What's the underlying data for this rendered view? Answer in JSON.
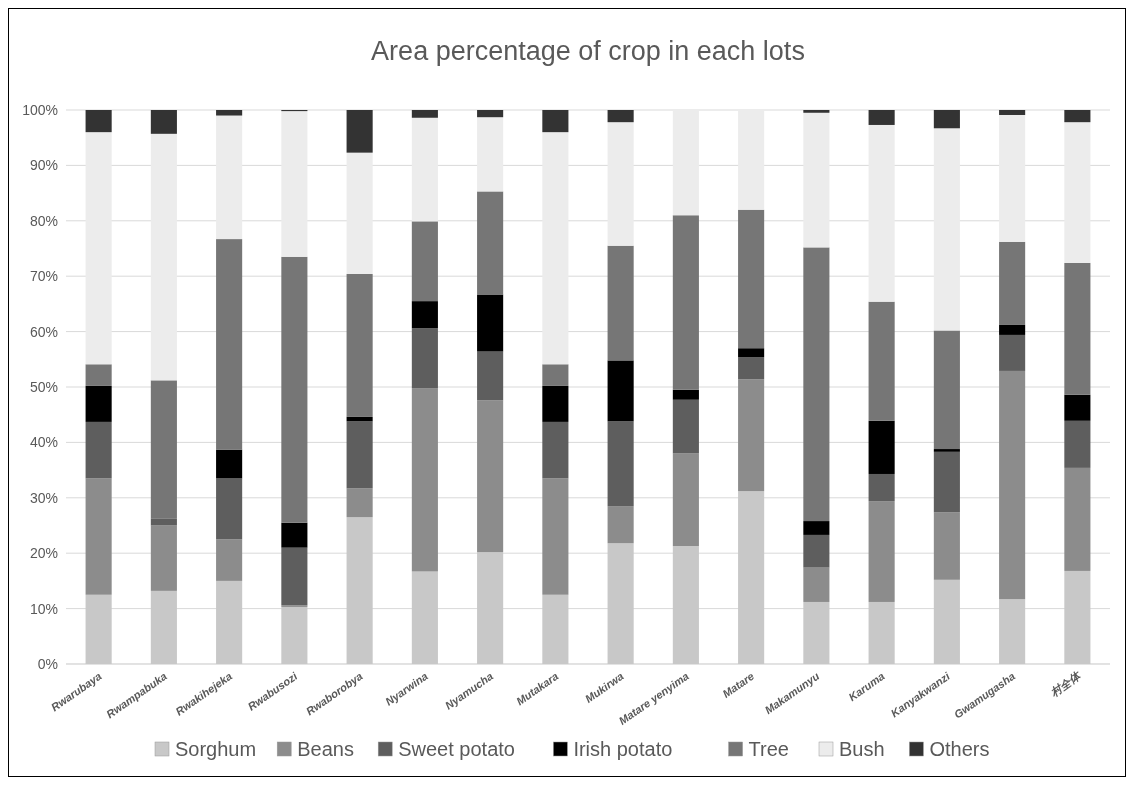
{
  "chart_data": {
    "type": "bar",
    "title": "Area percentage of crop in each lots",
    "stacked": true,
    "categories": [
      "Rwarubaya",
      "Rwampabuka",
      "Rwakihejeka",
      "Rwabusozi",
      "Rwaborobya",
      "Nyarwina",
      "Nyamucha",
      "Mutakara",
      "Mukirwa",
      "Matare yenyima",
      "Matare",
      "Makamunyu",
      "Karuma",
      "Kanyakwanzi",
      "Gwamugasha",
      "村全体"
    ],
    "series": [
      {
        "name": "Sorghum",
        "color": "#c8c8c8",
        "values": [
          12.5,
          13.2,
          15,
          10.3,
          26.5,
          16.7,
          20.2,
          12.5,
          21.8,
          21.3,
          31.2,
          11.2,
          11.2,
          15.2,
          11.7,
          16.8
        ]
      },
      {
        "name": "Beans",
        "color": "#8c8c8c",
        "values": [
          21,
          11.8,
          7.5,
          0.3,
          5.2,
          33.1,
          27.4,
          21,
          6.7,
          16.7,
          20.2,
          6.2,
          18.2,
          12.2,
          41.2,
          18.6
        ]
      },
      {
        "name": "Sweet potato",
        "color": "#5e5e5e",
        "values": [
          10.2,
          1.2,
          11,
          10.4,
          12.1,
          10.8,
          8.8,
          10.2,
          15.3,
          9.7,
          4.0,
          5.9,
          4.9,
          10.9,
          6.5,
          8.5
        ]
      },
      {
        "name": "Irish potato",
        "color": "#000000",
        "values": [
          6.5,
          0,
          5.2,
          4.5,
          0.8,
          4.9,
          10.3,
          6.5,
          11,
          1.8,
          1.6,
          2.5,
          9.6,
          0.5,
          1.8,
          4.7
        ]
      },
      {
        "name": "Tree",
        "color": "#767676",
        "values": [
          3.9,
          25,
          38,
          48,
          25.8,
          14.4,
          18.6,
          3.9,
          20.7,
          31.5,
          25,
          49.4,
          21.5,
          21.4,
          15,
          23.8
        ]
      },
      {
        "name": "Bush",
        "color": "#ececec",
        "values": [
          41.9,
          44.5,
          22.3,
          26.3,
          21.9,
          18.7,
          13.4,
          41.9,
          22.3,
          19,
          18,
          24.3,
          31.9,
          36.5,
          22.9,
          25.4
        ]
      },
      {
        "name": "Others",
        "color": "#333333",
        "values": [
          4.0,
          4.3,
          1.0,
          0.2,
          7.7,
          1.4,
          1.3,
          4.0,
          2.2,
          0,
          0,
          0.5,
          2.7,
          3.3,
          0.9,
          2.2
        ]
      }
    ],
    "ylim": [
      0,
      100
    ],
    "yticks": [
      {
        "value": 0,
        "label": "0%"
      },
      {
        "value": 10,
        "label": "10%"
      },
      {
        "value": 20,
        "label": "20%"
      },
      {
        "value": 30,
        "label": "30%"
      },
      {
        "value": 40,
        "label": "40%"
      },
      {
        "value": 50,
        "label": "50%"
      },
      {
        "value": 60,
        "label": "60%"
      },
      {
        "value": 70,
        "label": "70%"
      },
      {
        "value": 80,
        "label": "80%"
      },
      {
        "value": 90,
        "label": "90%"
      },
      {
        "value": 100,
        "label": "100%"
      }
    ],
    "grid": "y",
    "legend": "bottom"
  }
}
